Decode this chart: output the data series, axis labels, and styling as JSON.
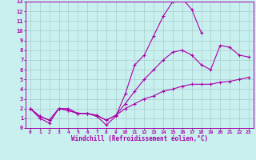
{
  "xlabel": "Windchill (Refroidissement éolien,°C)",
  "background_color": "#c8f0ee",
  "grid_color": "#aacccc",
  "line_color": "#aa00aa",
  "xlim": [
    -0.5,
    23.5
  ],
  "ylim": [
    0,
    13
  ],
  "xticks": [
    0,
    1,
    2,
    3,
    4,
    5,
    6,
    7,
    8,
    9,
    10,
    11,
    12,
    13,
    14,
    15,
    16,
    17,
    18,
    19,
    20,
    21,
    22,
    23
  ],
  "yticks": [
    0,
    1,
    2,
    3,
    4,
    5,
    6,
    7,
    8,
    9,
    10,
    11,
    12,
    13
  ],
  "s1_x": [
    0,
    1,
    2,
    3,
    4,
    5,
    6,
    7,
    8,
    9,
    10,
    11,
    12,
    13,
    14,
    15,
    16,
    17,
    18
  ],
  "s1_y": [
    2.0,
    1.0,
    0.5,
    2.0,
    2.0,
    1.5,
    1.5,
    1.2,
    0.3,
    1.2,
    3.5,
    6.5,
    7.5,
    9.5,
    11.5,
    13.0,
    13.3,
    12.2,
    9.8
  ],
  "s2_x": [
    0,
    1,
    2,
    3,
    4,
    5,
    6,
    7,
    8,
    9,
    10,
    11,
    12,
    13,
    14,
    15,
    16,
    17,
    18,
    19,
    20,
    21,
    22,
    23
  ],
  "s2_y": [
    2.0,
    1.2,
    0.8,
    2.0,
    1.8,
    1.5,
    1.5,
    1.3,
    0.8,
    1.3,
    2.5,
    3.8,
    5.0,
    6.0,
    7.0,
    7.8,
    8.0,
    7.5,
    6.5,
    6.0,
    8.5,
    8.3,
    7.5,
    7.3
  ],
  "s3_x": [
    0,
    1,
    2,
    3,
    4,
    5,
    6,
    7,
    8,
    9,
    10,
    11,
    12,
    13,
    14,
    15,
    16,
    17,
    18,
    19,
    20,
    21,
    22,
    23
  ],
  "s3_y": [
    2.0,
    1.2,
    0.8,
    2.0,
    1.8,
    1.5,
    1.5,
    1.3,
    0.8,
    1.3,
    2.0,
    2.5,
    3.0,
    3.3,
    3.8,
    4.0,
    4.3,
    4.5,
    4.5,
    4.5,
    4.7,
    4.8,
    5.0,
    5.2
  ]
}
